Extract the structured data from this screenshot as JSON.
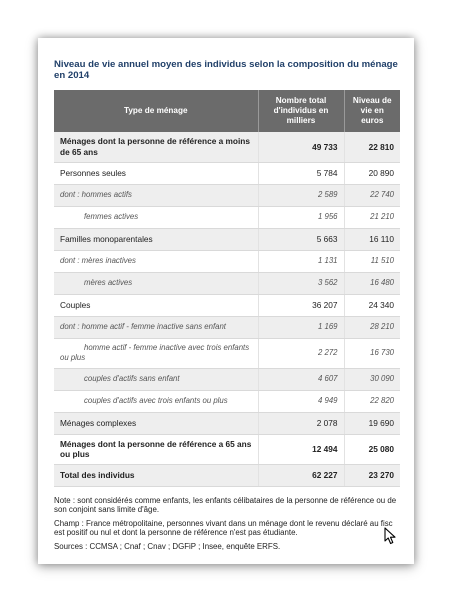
{
  "title": "Niveau de vie annuel moyen des individus selon la composition du ménage en 2014",
  "headers": [
    "Type de ménage",
    "Nombre total d'individus en milliers",
    "Niveau de vie en euros"
  ],
  "rows": [
    {
      "label": "Ménages dont la personne de référence a moins de 65 ans",
      "individus": "49 733",
      "niveau": "22 810",
      "style": "bold shade"
    },
    {
      "label": "Personnes seules",
      "individus": "5 784",
      "niveau": "20 890",
      "style": ""
    },
    {
      "label": "dont : hommes actifs",
      "individus": "2 589",
      "niveau": "22 740",
      "style": "sub shade"
    },
    {
      "label": "femmes actives",
      "individus": "1 956",
      "niveau": "21 210",
      "style": "sub indent"
    },
    {
      "label": "Familles monoparentales",
      "individus": "5 663",
      "niveau": "16 110",
      "style": "shade"
    },
    {
      "label": "dont : mères inactives",
      "individus": "1 131",
      "niveau": "11 510",
      "style": "sub"
    },
    {
      "label": "mères actives",
      "individus": "3 562",
      "niveau": "16 480",
      "style": "sub indent shade"
    },
    {
      "label": "Couples",
      "individus": "36 207",
      "niveau": "24 340",
      "style": ""
    },
    {
      "label": "dont : homme actif - femme inactive sans enfant",
      "individus": "1 169",
      "niveau": "28 210",
      "style": "sub shade"
    },
    {
      "label": "homme actif - femme inactive avec trois enfants ou plus",
      "individus": "2 272",
      "niveau": "16 730",
      "style": "sub twoline"
    },
    {
      "label": "couples d'actifs sans enfant",
      "individus": "4 607",
      "niveau": "30 090",
      "style": "sub indent shade"
    },
    {
      "label": "couples d'actifs avec trois enfants ou plus",
      "individus": "4 949",
      "niveau": "22 820",
      "style": "sub indent"
    },
    {
      "label": "Ménages complexes",
      "individus": "2 078",
      "niveau": "19 690",
      "style": "shade"
    },
    {
      "label": "Ménages dont la personne de référence a 65 ans ou plus",
      "individus": "12 494",
      "niveau": "25 080",
      "style": "bold"
    },
    {
      "label": "Total des individus",
      "individus": "62 227",
      "niveau": "23 270",
      "style": "bold shade"
    }
  ],
  "notes": [
    "Note : sont considérés comme enfants, les enfants célibataires de la personne de référence ou de son conjoint sans limite d'âge.",
    "Champ : France métropolitaine, personnes vivant dans un ménage dont le revenu déclaré au fisc est positif ou nul et dont la personne de référence n'est pas étudiante.",
    "Sources : CCMSA ; Cnaf ; Cnav ; DGFiP ; Insee, enquête ERFS."
  ]
}
